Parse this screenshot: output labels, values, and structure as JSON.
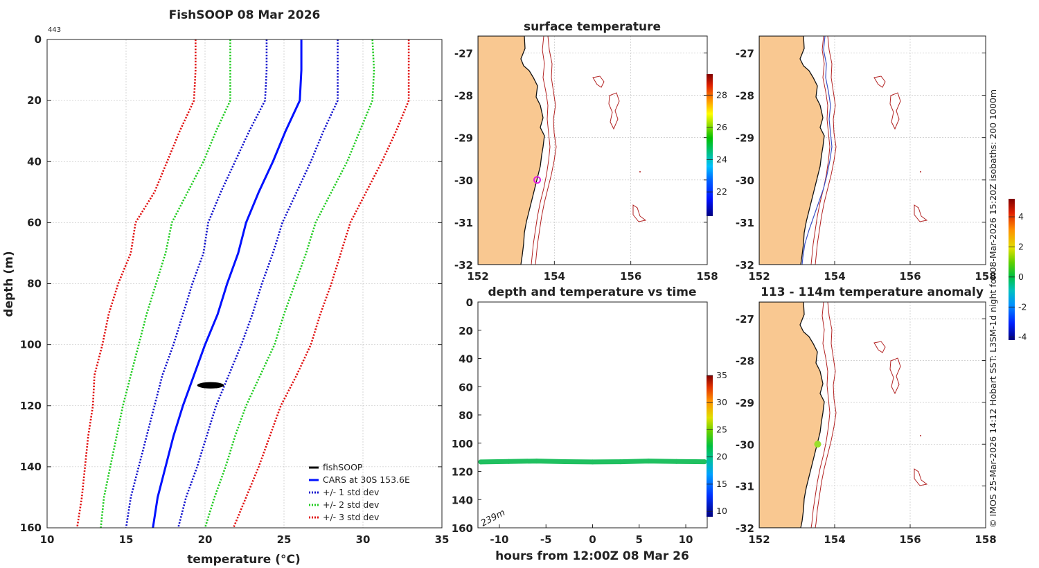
{
  "colors": {
    "land": "#f9c891",
    "coast": "#111111",
    "isobath_red": "#b22222",
    "isobath_blue": "#3a4fc4",
    "cars": "#0011ff",
    "std1": "#1010cc",
    "std2": "#22cc22",
    "std3": "#e01010",
    "fishsoop": "#000000",
    "sst_marker": "#e020e0",
    "dt_line": "#20c060",
    "anom_marker": "#9be02c",
    "grid": "#bbbbbb"
  },
  "chart_data": [
    {
      "type": "line",
      "id": "profile",
      "title": "FishSOOP 08 Mar 2026",
      "annotation": "443",
      "xlabel": "temperature (°C)",
      "ylabel": "depth (m)",
      "xlim": [
        10,
        35
      ],
      "ylim": [
        0,
        160
      ],
      "y_reversed": true,
      "xticks": [
        10,
        15,
        20,
        25,
        30,
        35
      ],
      "yticks": [
        0,
        20,
        40,
        60,
        80,
        100,
        120,
        140,
        160
      ],
      "grid": true,
      "legend_position": "bottom-right",
      "depths": [
        0,
        10,
        20,
        30,
        40,
        50,
        60,
        70,
        80,
        90,
        100,
        110,
        120,
        130,
        140,
        150,
        160
      ],
      "series": [
        {
          "name": "CARS at 30S 153.6E",
          "style": "solid",
          "color_key": "cars",
          "values": [
            26.1,
            26.1,
            26.0,
            25.1,
            24.3,
            23.4,
            22.6,
            22.1,
            21.4,
            20.8,
            20.0,
            19.3,
            18.6,
            18.0,
            17.5,
            17.0,
            16.7
          ]
        },
        {
          "name": "+/- 1 std dev",
          "style": "dotted",
          "color_key": "std1",
          "values": [
            23.9,
            23.9,
            23.8,
            22.8,
            21.9,
            21.0,
            20.2,
            19.9,
            19.2,
            18.6,
            18.0,
            17.3,
            16.8,
            16.3,
            15.8,
            15.3,
            15.0
          ]
        },
        {
          "name": "+/- 1 std dev",
          "style": "dotted",
          "color_key": "std1",
          "values": [
            28.4,
            28.4,
            28.4,
            27.5,
            26.7,
            25.8,
            24.9,
            24.3,
            23.6,
            23.0,
            22.3,
            21.5,
            20.7,
            20.1,
            19.5,
            18.8,
            18.3
          ]
        },
        {
          "name": "+/- 2 std dev",
          "style": "dotted",
          "color_key": "std2",
          "values": [
            21.6,
            21.6,
            21.6,
            20.7,
            19.9,
            18.9,
            17.9,
            17.5,
            16.9,
            16.3,
            15.8,
            15.3,
            14.8,
            14.4,
            14.0,
            13.6,
            13.4
          ]
        },
        {
          "name": "+/- 2 std dev",
          "style": "dotted",
          "color_key": "std2",
          "values": [
            30.6,
            30.7,
            30.6,
            29.8,
            29.0,
            28.0,
            27.0,
            26.4,
            25.7,
            25.0,
            24.4,
            23.5,
            22.6,
            21.9,
            21.3,
            20.6,
            20.0
          ]
        },
        {
          "name": "+/- 3 std dev",
          "style": "dotted",
          "color_key": "std3",
          "values": [
            19.4,
            19.4,
            19.3,
            18.4,
            17.6,
            16.8,
            15.6,
            15.3,
            14.5,
            13.9,
            13.5,
            13.0,
            12.9,
            12.6,
            12.4,
            12.2,
            11.9
          ]
        },
        {
          "name": "+/- 3 std dev",
          "style": "dotted",
          "color_key": "std3",
          "values": [
            32.9,
            32.9,
            32.9,
            32.1,
            31.2,
            30.2,
            29.2,
            28.6,
            28.0,
            27.3,
            26.7,
            25.8,
            24.8,
            24.1,
            23.4,
            22.6,
            21.8
          ]
        }
      ],
      "fishsoop": {
        "name": "fishSOOP",
        "temp_min": 19.5,
        "temp_max": 21.2,
        "depth_min": 112.6,
        "depth_max": 114.0
      },
      "legend": [
        "fishSOOP",
        "CARS at 30S 153.6E",
        "+/- 1 std dev",
        "+/- 2 std dev",
        "+/- 3 std dev"
      ]
    },
    {
      "type": "heatmap",
      "id": "sst_map",
      "title": "surface temperature",
      "xlim": [
        152,
        158
      ],
      "ylim": [
        -32,
        -26.6
      ],
      "xticks": [
        152,
        154,
        156,
        158
      ],
      "yticks": [
        -27,
        -28,
        -29,
        -30,
        -31,
        -32
      ],
      "marker": {
        "lon": 153.55,
        "lat": -30.0
      },
      "colorbar": {
        "min": 20.5,
        "max": 29.3,
        "ticks": [
          22,
          24,
          26,
          28
        ]
      }
    },
    {
      "type": "heatmap",
      "id": "bathy_map",
      "title": "",
      "xlim": [
        152,
        158
      ],
      "ylim": [
        -32,
        -26.6
      ],
      "xticks": [
        152,
        154,
        156,
        158
      ],
      "yticks": [
        -27,
        -28,
        -29,
        -30,
        -31,
        -32
      ]
    },
    {
      "type": "scatter",
      "id": "depth_time",
      "title": "depth and temperature vs time",
      "xlabel": "hours from 12:00Z 08 Mar 26",
      "xlim": [
        -12.3,
        12.3
      ],
      "ylim": [
        0,
        160
      ],
      "y_reversed": true,
      "xticks": [
        -10,
        -5,
        0,
        5,
        10
      ],
      "yticks": [
        0,
        20,
        40,
        60,
        80,
        100,
        120,
        140,
        160
      ],
      "annotation": "239m",
      "x": [
        -12,
        -9,
        -6,
        -3,
        0,
        3,
        6,
        9,
        12
      ],
      "y": [
        113.3,
        113.0,
        112.7,
        113.1,
        113.3,
        113.2,
        112.7,
        113.0,
        113.2
      ],
      "colorbar": {
        "min": 9,
        "max": 35,
        "ticks": [
          10,
          15,
          20,
          25,
          30,
          35
        ]
      }
    },
    {
      "type": "heatmap",
      "id": "anomaly_map",
      "title": "113 - 114m temperature anomaly",
      "xlim": [
        152,
        158
      ],
      "ylim": [
        -32,
        -26.6
      ],
      "xticks": [
        152,
        154,
        156,
        158
      ],
      "yticks": [
        -27,
        -28,
        -29,
        -30,
        -31,
        -32
      ],
      "marker": {
        "lon": 153.55,
        "lat": -30.0
      },
      "colorbar": {
        "min": -4.2,
        "max": 5.2,
        "ticks": [
          -4,
          -2,
          0,
          2,
          4
        ]
      }
    }
  ],
  "side_note": "© IMOS 25-Mar-2026 14:12 Hobart SST: L3SM-1d night for 08-Mar-2026 15:20Z isobaths: 200  1000m"
}
